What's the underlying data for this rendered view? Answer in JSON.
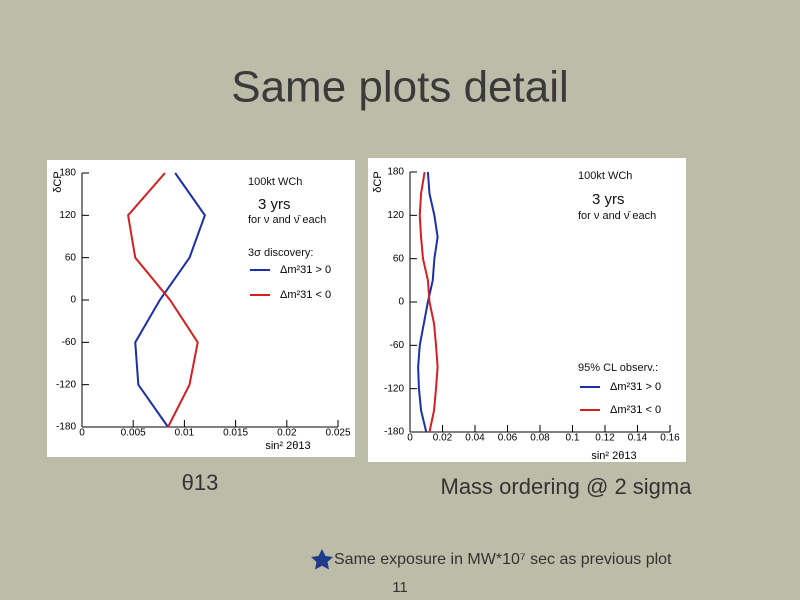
{
  "title": "Same plots detail",
  "captions": [
    "θ13",
    "Mass ordering @ 2 sigma"
  ],
  "footnote": "Same exposure in MW*10⁷ sec as previous plot",
  "page_number": "11",
  "chart_data": [
    {
      "type": "line",
      "x_label": "sin² 2θ13",
      "y_label": "δCP",
      "annotations": [
        "100kt WCh",
        "3 yrs",
        "for ν and ν̄ each",
        "3σ discovery:"
      ],
      "xlim": [
        0,
        0.025
      ],
      "xticks": [
        0,
        0.005,
        0.01,
        0.015,
        0.02,
        0.025
      ],
      "ylim": [
        -180,
        180
      ],
      "yticks": [
        180,
        120,
        60,
        0,
        -60,
        -120,
        -180
      ],
      "series": [
        {
          "name": "Δm²31 > 0",
          "color": "#1a2fa8",
          "x": [
            0.0091,
            0.012,
            0.0105,
            0.0076,
            0.0052,
            0.0055,
            0.0084
          ],
          "y": [
            180,
            120,
            60,
            0,
            -60,
            -120,
            -180
          ]
        },
        {
          "name": "Δm²31 < 0",
          "color": "#d42020",
          "x": [
            0.0081,
            0.0045,
            0.0052,
            0.0086,
            0.0113,
            0.0105,
            0.0084
          ],
          "y": [
            180,
            120,
            60,
            0,
            -60,
            -120,
            -180
          ]
        }
      ]
    },
    {
      "type": "line",
      "x_label": "sin² 2θ13",
      "y_label": "δCP",
      "annotations": [
        "100kt WCh",
        "3 yrs",
        "for ν and ν̄ each",
        "95% CL observ.:"
      ],
      "xlim": [
        0,
        0.16
      ],
      "xticks": [
        0,
        0.02,
        0.04,
        0.06,
        0.08,
        0.1,
        0.12,
        0.14,
        0.16
      ],
      "ylim": [
        -180,
        180
      ],
      "yticks": [
        180,
        120,
        60,
        0,
        -60,
        -120,
        -180
      ],
      "series": [
        {
          "name": "Δm²31 > 0",
          "color": "#1a2fa8",
          "x": [
            0.011,
            0.012,
            0.015,
            0.017,
            0.015,
            0.014,
            0.011,
            0.0085,
            0.006,
            0.005,
            0.0055,
            0.0068,
            0.01
          ],
          "y": [
            180,
            150,
            120,
            90,
            60,
            30,
            0,
            -30,
            -60,
            -90,
            -120,
            -150,
            -180
          ]
        },
        {
          "name": "Δm²31 < 0",
          "color": "#d42020",
          "x": [
            0.009,
            0.0068,
            0.006,
            0.0068,
            0.008,
            0.011,
            0.012,
            0.0148,
            0.016,
            0.017,
            0.016,
            0.0148,
            0.012
          ],
          "y": [
            180,
            150,
            120,
            90,
            60,
            30,
            0,
            -30,
            -60,
            -90,
            -120,
            -150,
            -180
          ]
        }
      ]
    }
  ]
}
